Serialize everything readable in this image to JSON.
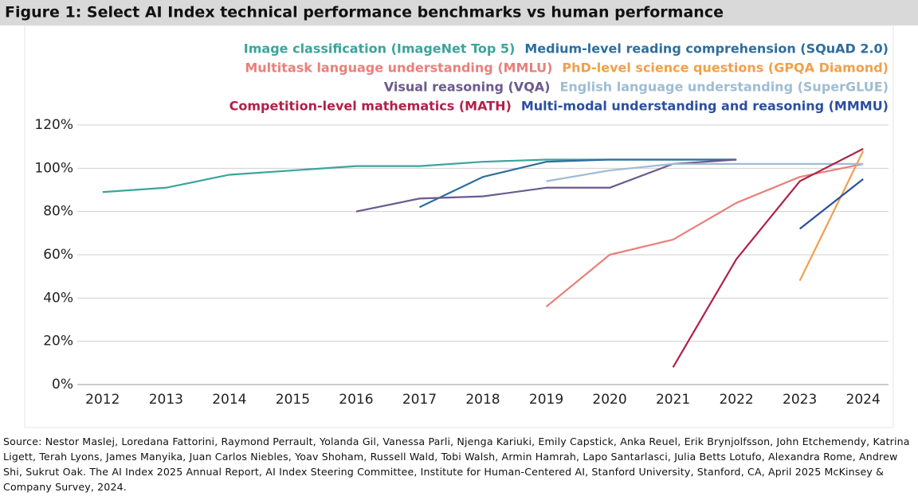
{
  "chart_data": {
    "type": "line",
    "title": "Figure 1: Select AI Index technical performance benchmarks vs human performance",
    "x": [
      2012,
      2013,
      2014,
      2015,
      2016,
      2017,
      2018,
      2019,
      2020,
      2021,
      2022,
      2023,
      2024
    ],
    "xlim": [
      2011.6,
      2024.4
    ],
    "ylim": [
      0,
      120
    ],
    "yticks": [
      {
        "value": 0,
        "label": "0%"
      },
      {
        "value": 20,
        "label": "20%"
      },
      {
        "value": 40,
        "label": "40%"
      },
      {
        "value": 60,
        "label": "60%"
      },
      {
        "value": 80,
        "label": "80%"
      },
      {
        "value": 100,
        "label": "100%"
      },
      {
        "value": 120,
        "label": "120%"
      }
    ],
    "grid": true,
    "legend": "top",
    "series": [
      {
        "name": "Image classification (ImageNet Top 5)",
        "color": "#3aa59a",
        "values": [
          89,
          91,
          97,
          99,
          101,
          101,
          103,
          104,
          104,
          104,
          104,
          null,
          null
        ]
      },
      {
        "name": "Medium-level reading comprehension (SQuAD 2.0)",
        "color": "#2e6e9e",
        "values": [
          null,
          null,
          null,
          null,
          null,
          82,
          96,
          103,
          104,
          104,
          104,
          null,
          null
        ]
      },
      {
        "name": "Multitask language understanding (MMLU)",
        "color": "#e8807a",
        "values": [
          null,
          null,
          null,
          null,
          null,
          null,
          null,
          36,
          60,
          67,
          84,
          96,
          102
        ]
      },
      {
        "name": "PhD-level science questions (GPQA Diamond)",
        "color": "#f0a04b",
        "values": [
          null,
          null,
          null,
          null,
          null,
          null,
          null,
          null,
          null,
          null,
          null,
          48,
          108
        ]
      },
      {
        "name": "Visual reasoning (VQA)",
        "color": "#6b5a8e",
        "values": [
          null,
          null,
          null,
          null,
          80,
          86,
          87,
          91,
          91,
          102,
          104,
          null,
          null
        ]
      },
      {
        "name": "English language understanding (SuperGLUE)",
        "color": "#9fbcd4",
        "values": [
          null,
          null,
          null,
          null,
          null,
          null,
          null,
          94,
          99,
          102,
          102,
          102,
          102
        ]
      },
      {
        "name": "Competition-level mathematics (MATH)",
        "color": "#b0204a",
        "values": [
          null,
          null,
          null,
          null,
          null,
          null,
          null,
          null,
          null,
          8,
          58,
          94,
          109
        ]
      },
      {
        "name": "Multi-modal understanding and reasoning (MMMU)",
        "color": "#2b4f9e",
        "values": [
          null,
          null,
          null,
          null,
          null,
          null,
          null,
          null,
          null,
          null,
          null,
          72,
          95
        ]
      }
    ],
    "source": "Source: Nestor Maslej, Loredana Fattorini, Raymond Perrault, Yolanda Gil, Vanessa Parli, Njenga Kariuki, Emily Capstick, Anka Reuel, Erik Brynjolfsson, John Etchemendy, Katrina Ligett, Terah Lyons, James Manyika, Juan Carlos Niebles, Yoav Shoham, Russell Wald, Tobi Walsh, Armin Hamrah, Lapo Santarlasci, Julia Betts Lotufo, Alexandra Rome, Andrew Shi, Sukrut Oak. The AI Index 2025 Annual Report, AI Index Steering Committee, Institute for Human-Centered AI, Stanford University, Stanford, CA, April 2025 McKinsey & Company Survey, 2024."
  }
}
